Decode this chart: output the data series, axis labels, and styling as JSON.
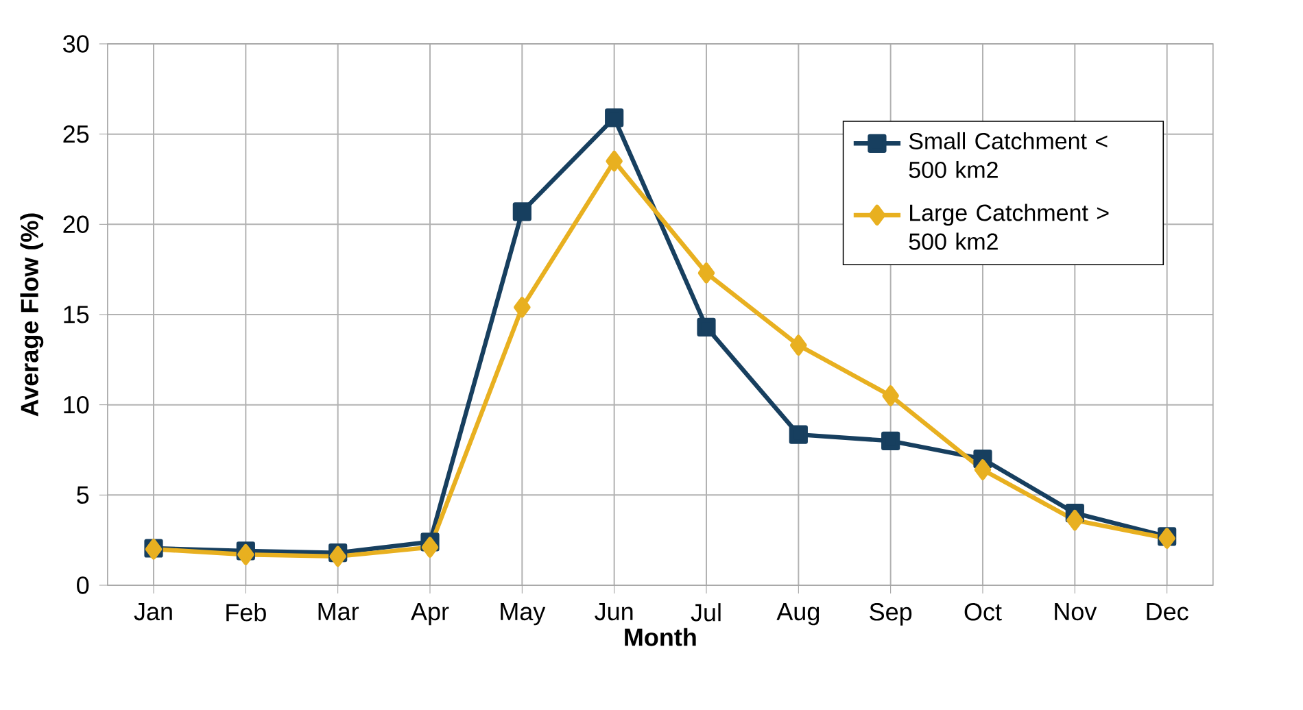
{
  "chart_data": {
    "type": "line",
    "xlabel": "Month",
    "ylabel": "Average Flow (%)",
    "categories": [
      "Jan",
      "Feb",
      "Mar",
      "Apr",
      "May",
      "Jun",
      "Jul",
      "Aug",
      "Sep",
      "Oct",
      "Nov",
      "Dec"
    ],
    "series": [
      {
        "name": "Small Catchment < 500 km2",
        "color": "#173f5f",
        "marker": "square",
        "values": [
          2.05,
          1.9,
          1.8,
          2.4,
          20.7,
          25.9,
          14.3,
          8.35,
          8.0,
          7.0,
          4.0,
          2.7
        ]
      },
      {
        "name": "Large Catchment > 500 km2",
        "color": "#e8b020",
        "marker": "diamond",
        "values": [
          2.0,
          1.7,
          1.6,
          2.1,
          15.4,
          23.5,
          17.3,
          13.3,
          10.5,
          6.4,
          3.6,
          2.6
        ]
      }
    ],
    "ylim": [
      0,
      30
    ],
    "yticks": [
      0,
      5,
      10,
      15,
      20,
      25,
      30
    ],
    "grid": true,
    "legend": "top right",
    "line_style": "solid"
  }
}
